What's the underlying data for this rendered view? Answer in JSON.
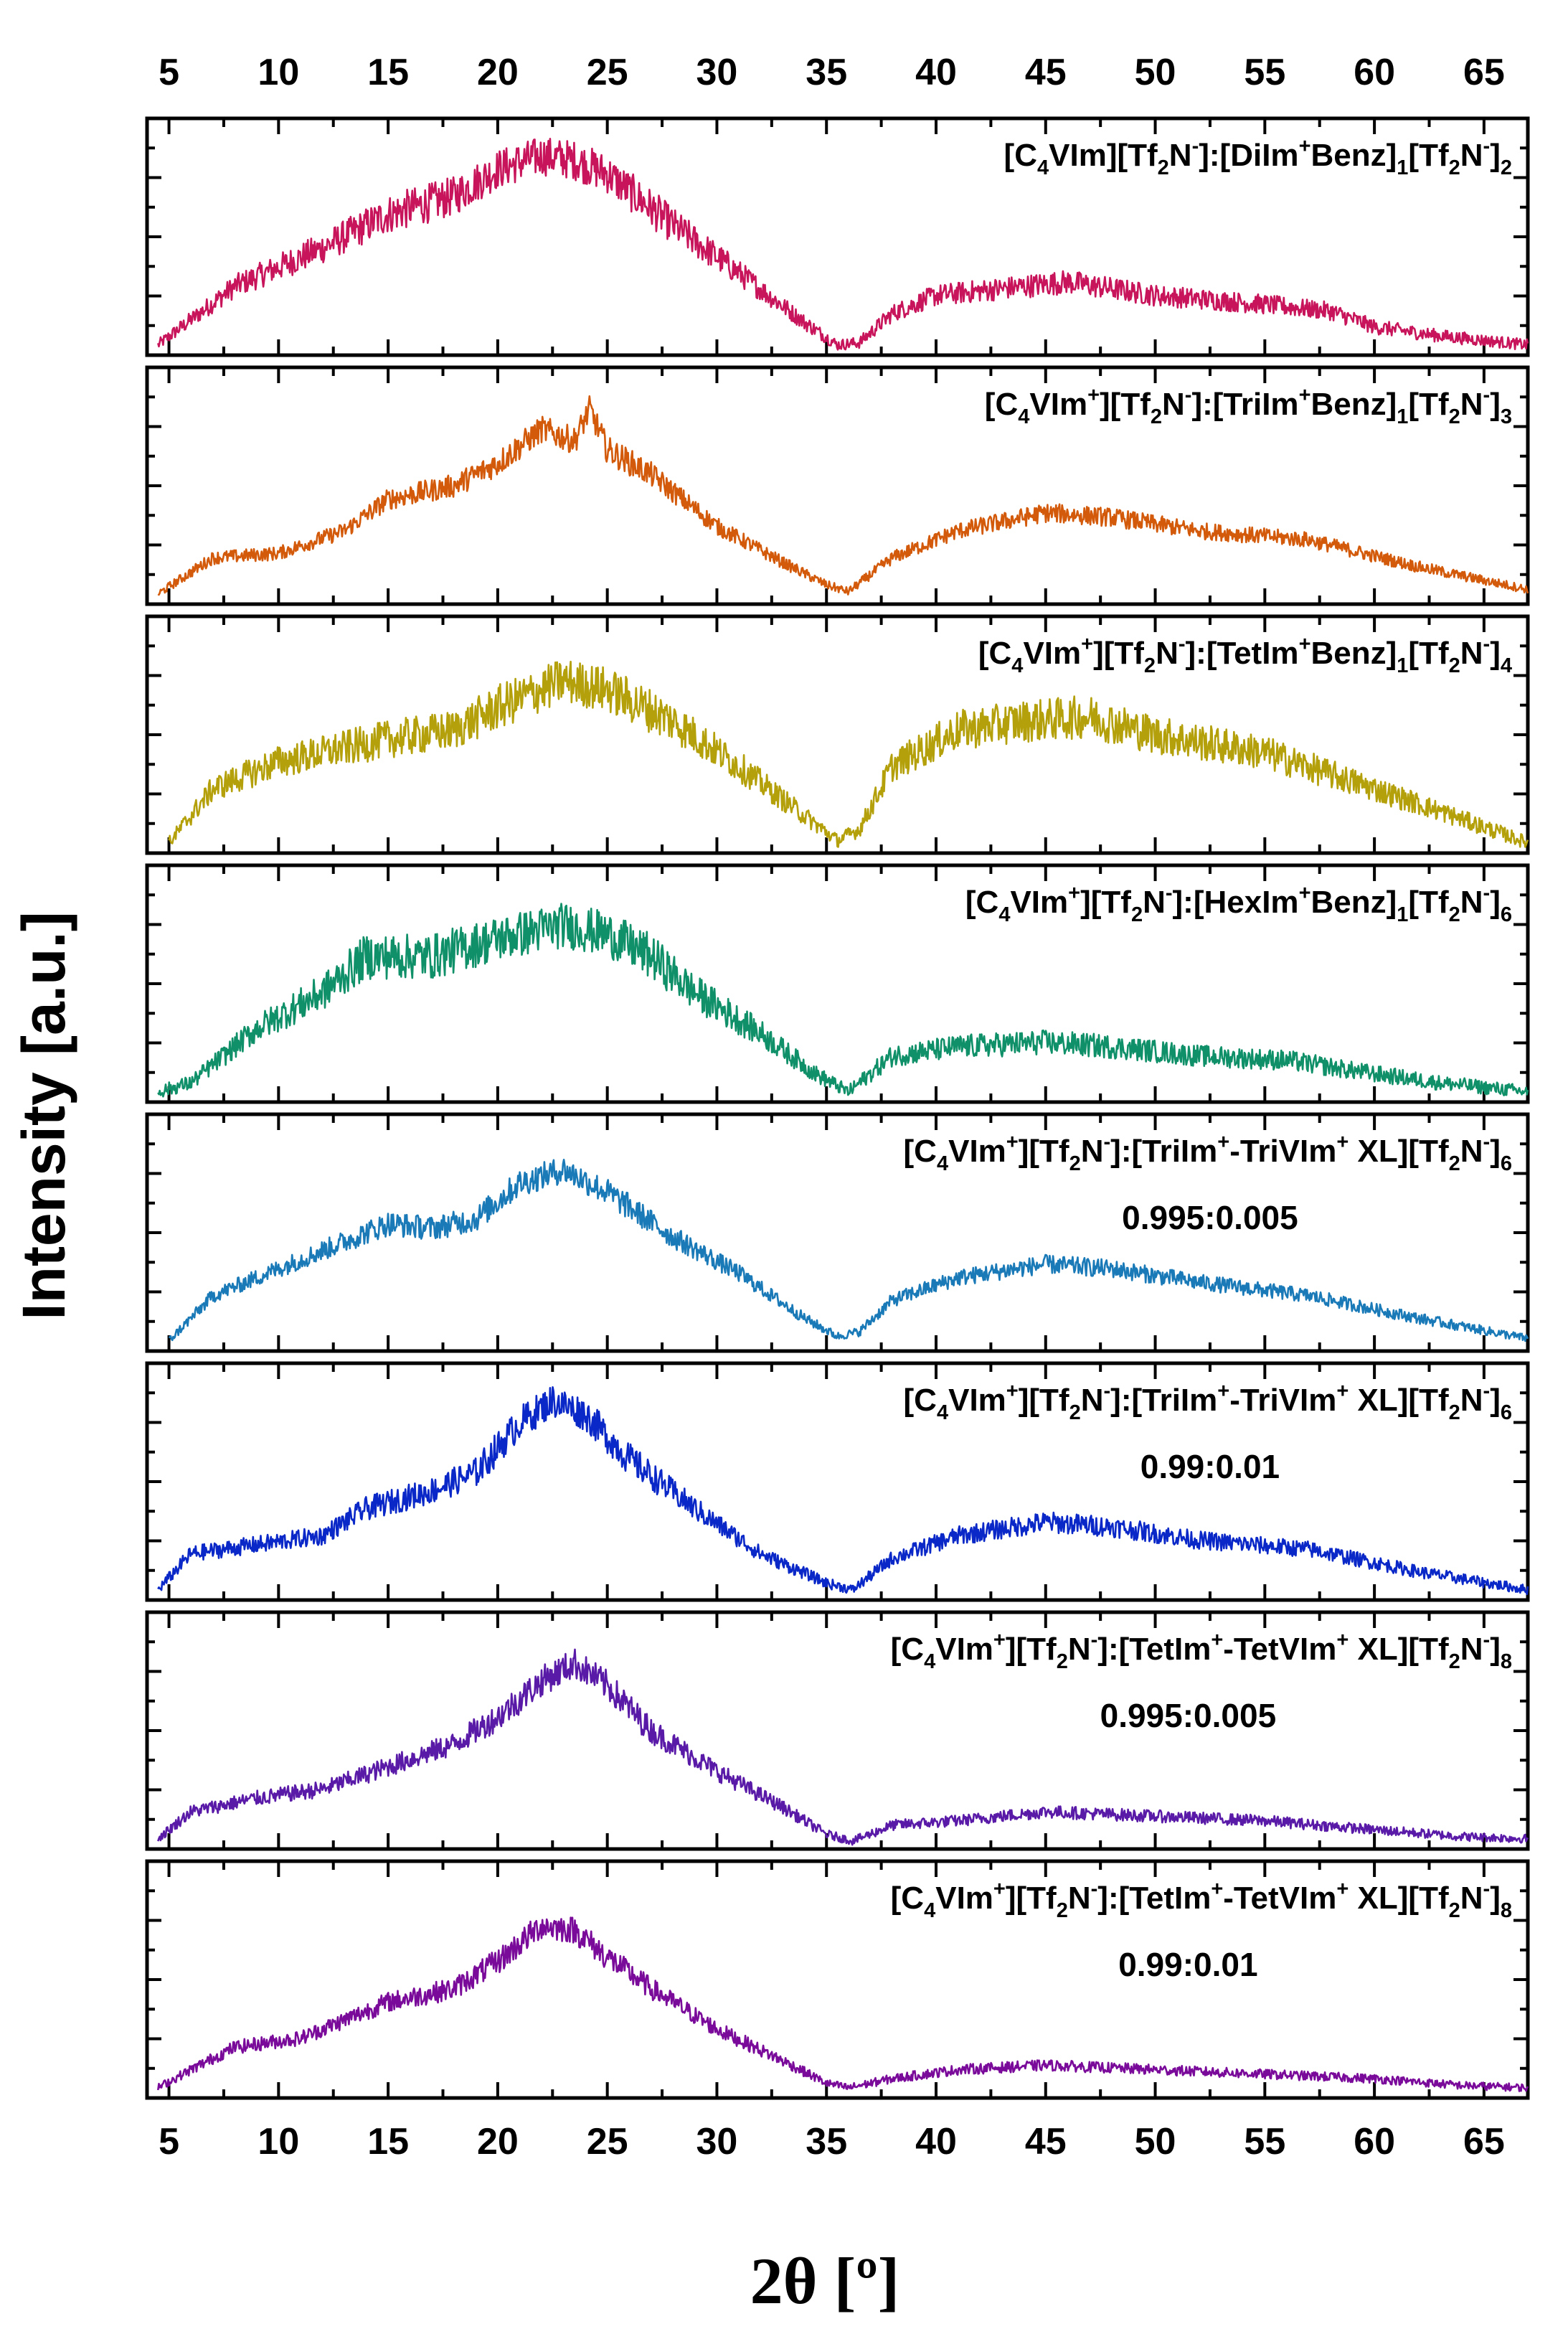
{
  "chart_data": {
    "type": "line",
    "layout": "stacked",
    "xlabel": "2θ [º]",
    "ylabel": "Intensity [a.u.]",
    "xlim": [
      4,
      67
    ],
    "ylim": [
      0,
      1
    ],
    "x_ticks": [
      5,
      10,
      15,
      20,
      25,
      30,
      35,
      40,
      45,
      50,
      55,
      60,
      65
    ],
    "x_ticks_top": [
      5,
      10,
      15,
      20,
      25,
      30,
      35,
      40,
      45,
      50,
      55,
      60,
      65
    ],
    "series": [
      {
        "name": "[C4VIm][Tf2N-]:[DiIm+Benz]1[Tf2N-]2",
        "label_parts": [
          {
            "t": "[C",
            "s": "n"
          },
          {
            "t": "4",
            "s": "sub"
          },
          {
            "t": "VIm][Tf",
            "s": "n"
          },
          {
            "t": "2",
            "s": "sub"
          },
          {
            "t": "N",
            "s": "n"
          },
          {
            "t": "-",
            "s": "sup"
          },
          {
            "t": "]:[DiIm",
            "s": "n"
          },
          {
            "t": "+",
            "s": "sup"
          },
          {
            "t": "Benz]",
            "s": "n"
          },
          {
            "t": "1",
            "s": "sub"
          },
          {
            "t": "[Tf",
            "s": "n"
          },
          {
            "t": "2",
            "s": "sub"
          },
          {
            "t": "N",
            "s": "n"
          },
          {
            "t": "-",
            "s": "sup"
          },
          {
            "t": "]",
            "s": "n"
          },
          {
            "t": "2",
            "s": "sub"
          }
        ],
        "ratio": "",
        "color": "#c8145a",
        "noise": 0.065,
        "x": [
          4.5,
          8,
          12,
          15,
          18,
          20,
          22,
          23.5,
          25,
          28,
          31,
          34,
          35.5,
          36.5,
          38,
          40,
          44,
          46,
          50,
          55,
          58,
          60,
          63,
          67
        ],
        "y": [
          0.02,
          0.28,
          0.45,
          0.6,
          0.68,
          0.8,
          0.86,
          0.84,
          0.78,
          0.55,
          0.34,
          0.12,
          0.02,
          0.03,
          0.16,
          0.24,
          0.28,
          0.3,
          0.24,
          0.2,
          0.17,
          0.1,
          0.06,
          0.02
        ]
      },
      {
        "name": "[C4VIm+][Tf2N-]:[TriIm+Benz]1[Tf2N-]3",
        "label_parts": [
          {
            "t": "[C",
            "s": "n"
          },
          {
            "t": "4",
            "s": "sub"
          },
          {
            "t": "VIm",
            "s": "n"
          },
          {
            "t": "+",
            "s": "sup"
          },
          {
            "t": "][Tf",
            "s": "n"
          },
          {
            "t": "2",
            "s": "sub"
          },
          {
            "t": "N",
            "s": "n"
          },
          {
            "t": "-",
            "s": "sup"
          },
          {
            "t": "]:[TriIm",
            "s": "n"
          },
          {
            "t": "+",
            "s": "sup"
          },
          {
            "t": "Benz]",
            "s": "n"
          },
          {
            "t": "1",
            "s": "sub"
          },
          {
            "t": "[Tf",
            "s": "n"
          },
          {
            "t": "2",
            "s": "sub"
          },
          {
            "t": "N",
            "s": "n"
          },
          {
            "t": "-",
            "s": "sup"
          },
          {
            "t": "]",
            "s": "n"
          },
          {
            "t": "3",
            "s": "sub"
          }
        ],
        "ratio": "",
        "color": "#d35a0a",
        "noise": 0.045,
        "x": [
          4.5,
          7,
          10,
          13,
          15,
          18,
          20,
          22,
          23.5,
          24.2,
          25,
          27,
          30,
          33,
          35,
          36,
          38,
          41,
          45,
          48,
          52,
          57,
          62,
          67
        ],
        "y": [
          0.02,
          0.18,
          0.2,
          0.3,
          0.44,
          0.5,
          0.6,
          0.75,
          0.7,
          0.84,
          0.66,
          0.55,
          0.32,
          0.16,
          0.06,
          0.03,
          0.18,
          0.3,
          0.38,
          0.36,
          0.3,
          0.26,
          0.14,
          0.04
        ]
      },
      {
        "name": "[C4VIm+][Tf2N-]:[TetIm+Benz]1[Tf2N-]4",
        "label_parts": [
          {
            "t": "[C",
            "s": "n"
          },
          {
            "t": "4",
            "s": "sub"
          },
          {
            "t": "VIm",
            "s": "n"
          },
          {
            "t": "+",
            "s": "sup"
          },
          {
            "t": "][Tf",
            "s": "n"
          },
          {
            "t": "2",
            "s": "sub"
          },
          {
            "t": "N",
            "s": "n"
          },
          {
            "t": "-",
            "s": "sup"
          },
          {
            "t": "]:[TetIm",
            "s": "n"
          },
          {
            "t": "+",
            "s": "sup"
          },
          {
            "t": "Benz]",
            "s": "n"
          },
          {
            "t": "1",
            "s": "sub"
          },
          {
            "t": "[Tf",
            "s": "n"
          },
          {
            "t": "2",
            "s": "sub"
          },
          {
            "t": "N",
            "s": "n"
          },
          {
            "t": "-",
            "s": "sup"
          },
          {
            "t": "]",
            "s": "n"
          },
          {
            "t": "4",
            "s": "sub"
          }
        ],
        "ratio": "",
        "color": "#b4a00a",
        "noise": 0.075,
        "x": [
          5,
          7,
          10,
          15,
          18,
          20,
          22,
          23,
          25,
          28,
          31,
          34,
          35.5,
          36.5,
          38,
          41,
          44,
          47,
          50,
          55,
          60,
          63,
          67
        ],
        "y": [
          0.02,
          0.26,
          0.38,
          0.48,
          0.52,
          0.62,
          0.7,
          0.74,
          0.7,
          0.56,
          0.36,
          0.14,
          0.03,
          0.08,
          0.36,
          0.52,
          0.56,
          0.58,
          0.5,
          0.42,
          0.26,
          0.16,
          0.02
        ]
      },
      {
        "name": "[C4VIm+][Tf2N-]:[HexIm+Benz]1[Tf2N-]6",
        "label_parts": [
          {
            "t": "[C",
            "s": "n"
          },
          {
            "t": "4",
            "s": "sub"
          },
          {
            "t": "VIm",
            "s": "n"
          },
          {
            "t": "+",
            "s": "sup"
          },
          {
            "t": "][Tf",
            "s": "n"
          },
          {
            "t": "2",
            "s": "sub"
          },
          {
            "t": "N",
            "s": "n"
          },
          {
            "t": "-",
            "s": "sup"
          },
          {
            "t": "]:[HexIm",
            "s": "n"
          },
          {
            "t": "+",
            "s": "sup"
          },
          {
            "t": "Benz]",
            "s": "n"
          },
          {
            "t": "1",
            "s": "sub"
          },
          {
            "t": "[Tf",
            "s": "n"
          },
          {
            "t": "2",
            "s": "sub"
          },
          {
            "t": "N",
            "s": "n"
          },
          {
            "t": "-",
            "s": "sup"
          },
          {
            "t": "]",
            "s": "n"
          },
          {
            "t": "6",
            "s": "sub"
          }
        ],
        "ratio": "",
        "color": "#109068",
        "noise": 0.075,
        "x": [
          4.5,
          6,
          9,
          12,
          14,
          17,
          20,
          23,
          25,
          27,
          29,
          32,
          34.5,
          36,
          38,
          41,
          45,
          48,
          52,
          56,
          60,
          63,
          67
        ],
        "y": [
          0.02,
          0.06,
          0.3,
          0.46,
          0.62,
          0.62,
          0.7,
          0.76,
          0.72,
          0.62,
          0.46,
          0.28,
          0.1,
          0.02,
          0.18,
          0.22,
          0.24,
          0.22,
          0.18,
          0.16,
          0.1,
          0.06,
          0.02
        ]
      },
      {
        "name": "[C4VIm+][Tf2N-]:[TriIm+-TriVIm+ XL][Tf2N-]6 0.995:0.005",
        "label_parts": [
          {
            "t": "[C",
            "s": "n"
          },
          {
            "t": "4",
            "s": "sub"
          },
          {
            "t": "VIm",
            "s": "n"
          },
          {
            "t": "+",
            "s": "sup"
          },
          {
            "t": "][Tf",
            "s": "n"
          },
          {
            "t": "2",
            "s": "sub"
          },
          {
            "t": "N",
            "s": "n"
          },
          {
            "t": "-",
            "s": "sup"
          },
          {
            "t": "]:[TriIm",
            "s": "n"
          },
          {
            "t": "+",
            "s": "sup"
          },
          {
            "t": "-TriVIm",
            "s": "n"
          },
          {
            "t": "+",
            "s": "sup"
          },
          {
            "t": " XL][Tf",
            "s": "n"
          },
          {
            "t": "2",
            "s": "sub"
          },
          {
            "t": "N",
            "s": "n"
          },
          {
            "t": "-",
            "s": "sup"
          },
          {
            "t": "]",
            "s": "n"
          },
          {
            "t": "6",
            "s": "sub"
          }
        ],
        "ratio": "0.995:0.005",
        "color": "#1a7ab8",
        "noise": 0.045,
        "x": [
          5,
          7,
          10,
          13,
          15,
          17,
          19,
          21,
          23,
          25,
          28,
          31,
          34,
          35.5,
          36.5,
          38,
          41,
          45,
          48,
          52,
          57,
          62,
          67
        ],
        "y": [
          0.02,
          0.22,
          0.34,
          0.46,
          0.54,
          0.52,
          0.56,
          0.72,
          0.78,
          0.68,
          0.48,
          0.32,
          0.12,
          0.04,
          0.06,
          0.2,
          0.3,
          0.36,
          0.34,
          0.28,
          0.22,
          0.12,
          0.03
        ]
      },
      {
        "name": "[C4VIm+][Tf2N-]:[TriIm+-TriVIm+ XL][Tf2N-]6 0.99:0.01",
        "label_parts": [
          {
            "t": "[C",
            "s": "n"
          },
          {
            "t": "4",
            "s": "sub"
          },
          {
            "t": "VIm",
            "s": "n"
          },
          {
            "t": "+",
            "s": "sup"
          },
          {
            "t": "][Tf",
            "s": "n"
          },
          {
            "t": "2",
            "s": "sub"
          },
          {
            "t": "N",
            "s": "n"
          },
          {
            "t": "-",
            "s": "sup"
          },
          {
            "t": "]:[TriIm",
            "s": "n"
          },
          {
            "t": "+",
            "s": "sup"
          },
          {
            "t": "-TriVIm",
            "s": "n"
          },
          {
            "t": "+",
            "s": "sup"
          },
          {
            "t": " XL][Tf",
            "s": "n"
          },
          {
            "t": "2",
            "s": "sub"
          },
          {
            "t": "N",
            "s": "n"
          },
          {
            "t": "-",
            "s": "sup"
          },
          {
            "t": "]",
            "s": "n"
          },
          {
            "t": "6",
            "s": "sub"
          }
        ],
        "ratio": "0.99:0.01",
        "color": "#0a28c8",
        "noise": 0.055,
        "x": [
          4.5,
          6,
          9,
          12,
          14,
          17,
          19,
          21,
          22.5,
          24,
          26,
          29,
          32,
          35,
          36.2,
          38,
          41,
          45,
          48,
          52,
          57,
          62,
          67
        ],
        "y": [
          0.02,
          0.18,
          0.22,
          0.26,
          0.38,
          0.46,
          0.54,
          0.76,
          0.86,
          0.8,
          0.6,
          0.38,
          0.18,
          0.05,
          0.02,
          0.16,
          0.26,
          0.32,
          0.3,
          0.24,
          0.2,
          0.1,
          0.02
        ]
      },
      {
        "name": "[C4VIm+][Tf2N-]:[TetIm+-TetVIm+ XL][Tf2N-]8 0.995:0.005",
        "label_parts": [
          {
            "t": "[C",
            "s": "n"
          },
          {
            "t": "4",
            "s": "sub"
          },
          {
            "t": "VIm",
            "s": "n"
          },
          {
            "t": "+",
            "s": "sup"
          },
          {
            "t": "][Tf",
            "s": "n"
          },
          {
            "t": "2",
            "s": "sub"
          },
          {
            "t": "N",
            "s": "n"
          },
          {
            "t": "-",
            "s": "sup"
          },
          {
            "t": "]:[TetIm",
            "s": "n"
          },
          {
            "t": "+",
            "s": "sup"
          },
          {
            "t": "-TetVIm",
            "s": "n"
          },
          {
            "t": "+",
            "s": "sup"
          },
          {
            "t": " XL][Tf",
            "s": "n"
          },
          {
            "t": "2",
            "s": "sub"
          },
          {
            "t": "N",
            "s": "n"
          },
          {
            "t": "-",
            "s": "sup"
          },
          {
            "t": "]",
            "s": "n"
          },
          {
            "t": "8",
            "s": "sub"
          }
        ],
        "ratio": "0.995:0.005",
        "color": "#5a1aa8",
        "noise": 0.05,
        "x": [
          4.5,
          6,
          9,
          12,
          15,
          18,
          20,
          22,
          23.5,
          25,
          27,
          30,
          33,
          35,
          36.2,
          38,
          41,
          45,
          50,
          55,
          60,
          64,
          67
        ],
        "y": [
          0.02,
          0.14,
          0.2,
          0.24,
          0.34,
          0.44,
          0.56,
          0.72,
          0.8,
          0.7,
          0.5,
          0.32,
          0.16,
          0.04,
          0.01,
          0.08,
          0.1,
          0.14,
          0.12,
          0.1,
          0.06,
          0.03,
          0.02
        ]
      },
      {
        "name": "[C4VIm+][Tf2N-]:[TetIm+-TetVIm+ XL][Tf2N-]8 0.99:0.01",
        "label_parts": [
          {
            "t": "[C",
            "s": "n"
          },
          {
            "t": "4",
            "s": "sub"
          },
          {
            "t": "VIm",
            "s": "n"
          },
          {
            "t": "+",
            "s": "sup"
          },
          {
            "t": "][Tf",
            "s": "n"
          },
          {
            "t": "2",
            "s": "sub"
          },
          {
            "t": "N",
            "s": "n"
          },
          {
            "t": "-",
            "s": "sup"
          },
          {
            "t": "]:[TetIm",
            "s": "n"
          },
          {
            "t": "+",
            "s": "sup"
          },
          {
            "t": "-TetVIm",
            "s": "n"
          },
          {
            "t": "+",
            "s": "sup"
          },
          {
            "t": " XL][Tf",
            "s": "n"
          },
          {
            "t": "2",
            "s": "sub"
          },
          {
            "t": "N",
            "s": "n"
          },
          {
            "t": "-",
            "s": "sup"
          },
          {
            "t": "]",
            "s": "n"
          },
          {
            "t": "8",
            "s": "sub"
          }
        ],
        "ratio": "0.99:0.01",
        "color": "#7a0a9a",
        "noise": 0.045,
        "x": [
          4.5,
          6,
          8,
          11,
          13,
          15,
          18,
          20,
          22,
          23.5,
          25,
          27,
          30,
          33,
          35,
          36,
          38,
          41,
          45,
          50,
          55,
          60,
          64,
          67
        ],
        "y": [
          0.02,
          0.1,
          0.2,
          0.24,
          0.32,
          0.4,
          0.46,
          0.58,
          0.74,
          0.72,
          0.6,
          0.46,
          0.28,
          0.14,
          0.04,
          0.02,
          0.06,
          0.1,
          0.12,
          0.1,
          0.08,
          0.06,
          0.03,
          0.02
        ]
      }
    ]
  }
}
